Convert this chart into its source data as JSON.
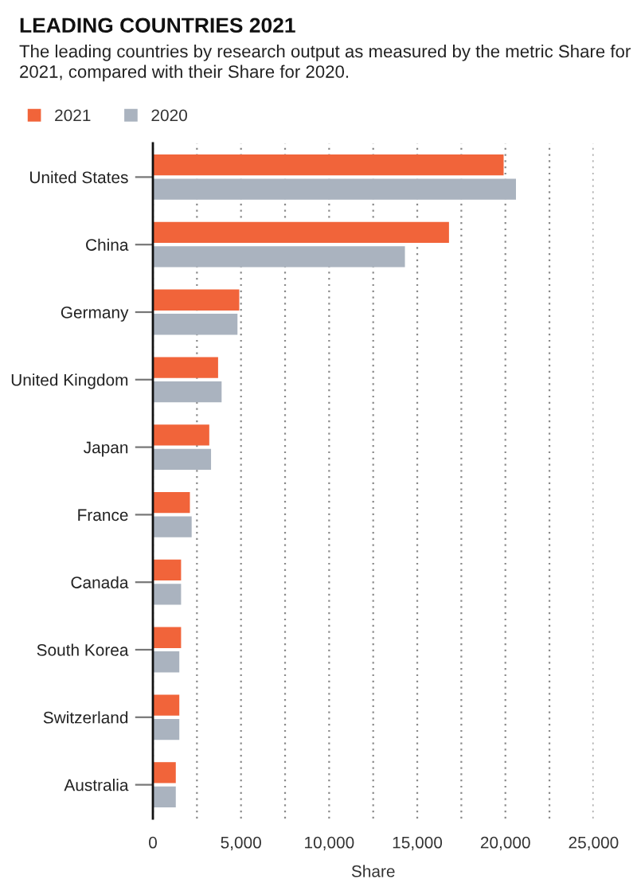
{
  "chart_data": {
    "type": "bar",
    "orientation": "horizontal",
    "title": "LEADING COUNTRIES 2021",
    "subtitle": "The leading countries by research output as measured by the metric Share for 2021, compared with their Share for 2020.",
    "xlabel": "Share",
    "categories": [
      "United States",
      "China",
      "Germany",
      "United Kingdom",
      "Japan",
      "France",
      "Canada",
      "South Korea",
      "Switzerland",
      "Australia"
    ],
    "series": [
      {
        "name": "2021",
        "color": "#f1643a",
        "values": [
          19900,
          16800,
          4900,
          3700,
          3200,
          2100,
          1600,
          1600,
          1500,
          1300
        ]
      },
      {
        "name": "2020",
        "color": "#aab3bf",
        "values": [
          20600,
          14300,
          4800,
          3900,
          3300,
          2200,
          1600,
          1500,
          1500,
          1300
        ]
      }
    ],
    "xlim": [
      0,
      25000
    ],
    "xticks": [
      0,
      {
        "value": 2500,
        "label": null
      },
      {
        "value": 5000,
        "label": "5,000"
      },
      {
        "value": 7500,
        "label": null
      },
      {
        "value": 10000,
        "label": "10,000"
      },
      {
        "value": 12500,
        "label": null
      },
      {
        "value": 15000,
        "label": "15,000"
      },
      {
        "value": 17500,
        "label": null
      },
      {
        "value": 20000,
        "label": "20,000"
      },
      {
        "value": 22500,
        "label": null
      },
      {
        "value": 25000,
        "label": "25,000"
      }
    ],
    "grid": "x",
    "legend": "top left"
  }
}
